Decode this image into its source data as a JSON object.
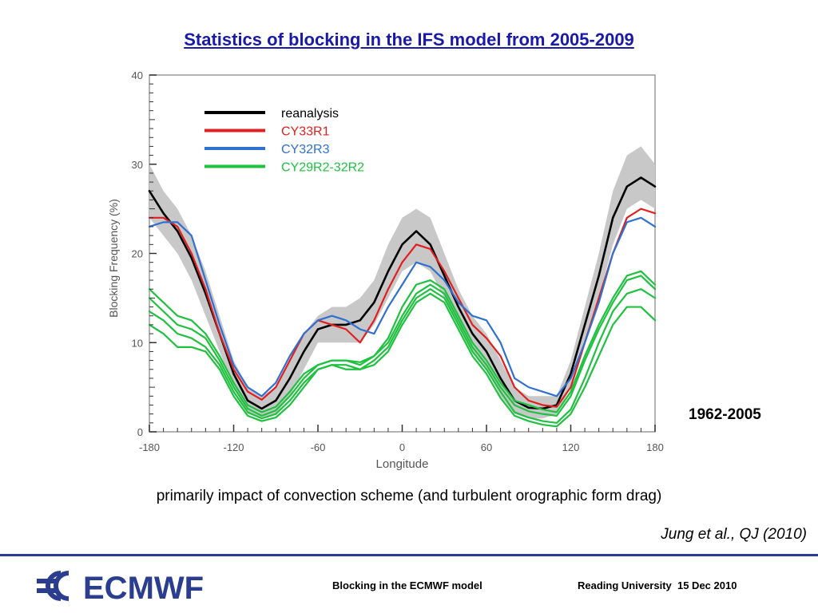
{
  "slide": {
    "title": "Statistics of blocking in the IFS model from 2005-2009",
    "period_label": "1962-2005",
    "caption": "primarily impact of convection scheme (and turbulent orographic form drag)",
    "citation": "Jung et al., QJ (2010)"
  },
  "footer": {
    "logo_text": "ECMWF",
    "left_text": "Blocking in the ECMWF model",
    "right_text": "Reading University  15 Dec 2010"
  },
  "colors": {
    "title": "#1a1aa8",
    "divider": "#2b3d8f",
    "logo": "#2b3d8f",
    "band": "#c8c8c8"
  },
  "chart_data": {
    "type": "line",
    "title": "",
    "xlabel": "Longitude",
    "ylabel": "Blocking Frequency (%)",
    "xlim": [
      -180,
      180
    ],
    "ylim": [
      0,
      40
    ],
    "xticks": [
      -180,
      -120,
      -60,
      0,
      60,
      120,
      180
    ],
    "yticks": [
      0,
      10,
      20,
      30,
      40
    ],
    "legend_position": "top-left",
    "x": [
      -180,
      -170,
      -160,
      -150,
      -140,
      -130,
      -120,
      -110,
      -100,
      -90,
      -80,
      -70,
      -60,
      -50,
      -40,
      -30,
      -20,
      -10,
      0,
      10,
      20,
      30,
      40,
      50,
      60,
      70,
      80,
      90,
      100,
      110,
      120,
      130,
      140,
      150,
      160,
      170,
      180
    ],
    "band": {
      "upper": [
        30,
        27,
        25,
        22,
        18,
        13,
        8,
        5,
        4,
        5,
        8,
        11,
        13,
        14,
        14,
        15,
        17,
        21,
        24,
        25,
        24,
        20,
        16,
        13,
        11,
        8,
        5,
        4,
        4,
        4,
        8,
        14,
        20,
        27,
        31,
        32,
        30
      ],
      "lower": [
        24,
        22,
        20,
        17,
        13,
        9,
        5,
        2,
        1.5,
        2,
        4,
        7,
        10,
        10,
        10,
        10,
        12,
        15,
        18,
        19,
        18,
        15,
        12,
        9,
        7,
        4,
        2,
        1.5,
        1.5,
        2,
        5,
        10,
        15,
        21,
        25,
        26,
        25
      ]
    },
    "series": [
      {
        "name": "reanalysis",
        "color": "#000000",
        "values": [
          27,
          24.5,
          22.5,
          19.5,
          15.5,
          11,
          6.5,
          3.5,
          2.6,
          3.5,
          6,
          9,
          11.5,
          12,
          12,
          12.5,
          14.5,
          18,
          21,
          22.5,
          21,
          17.5,
          14,
          11,
          9,
          6,
          3.5,
          2.7,
          2.6,
          3,
          6.5,
          12,
          17.5,
          24,
          27.5,
          28.5,
          27.5
        ]
      },
      {
        "name": "CY33R1",
        "color": "#e02020",
        "values": [
          24,
          24,
          23,
          20,
          16,
          11,
          7,
          4.5,
          3.6,
          5,
          8,
          11,
          12.5,
          12,
          11.5,
          10,
          12.5,
          16,
          19,
          21,
          20.5,
          18,
          15,
          12,
          10.5,
          8.5,
          5,
          3.5,
          3,
          2.8,
          5,
          10,
          15,
          20,
          24,
          25,
          24.5
        ]
      },
      {
        "name": "CY32R3",
        "color": "#3070d0",
        "values": [
          23,
          23.5,
          23.5,
          22,
          17,
          12,
          7.5,
          5,
          4,
          5.5,
          8.5,
          11,
          12.5,
          13,
          12.5,
          11.5,
          11,
          14,
          16.5,
          19,
          18.5,
          17,
          14.5,
          13,
          12.5,
          10,
          6,
          5,
          4.5,
          4,
          6,
          10,
          14.5,
          20,
          23.5,
          24,
          23
        ]
      },
      {
        "name": "CY29R2-32R2",
        "color": "#20c040",
        "values": [
          16,
          14.5,
          13,
          12.5,
          11,
          8.5,
          5.5,
          3,
          2.2,
          2.8,
          4.5,
          6.5,
          7.5,
          8,
          8,
          7.5,
          8.5,
          10.5,
          14,
          16.5,
          17,
          16,
          13,
          10,
          8,
          5.5,
          3.5,
          3,
          2.5,
          2.2,
          4.5,
          8.5,
          12,
          15,
          17.5,
          18,
          16.5
        ]
      },
      {
        "name": "",
        "color": "#20c040",
        "values": [
          15,
          13.5,
          12,
          11.5,
          10.5,
          8,
          5,
          2.6,
          1.8,
          2.4,
          4,
          6,
          7.5,
          8,
          8,
          7.8,
          8.5,
          10,
          13,
          15.5,
          16.5,
          15.5,
          12.5,
          9.5,
          7.5,
          5,
          3,
          2.3,
          2,
          1.8,
          4,
          8,
          11.5,
          14.5,
          17,
          17.5,
          16
        ]
      },
      {
        "name": "",
        "color": "#20c040",
        "values": [
          13.5,
          12.5,
          11,
          10.5,
          9.5,
          7.5,
          4.5,
          2.2,
          1.5,
          2,
          3.5,
          5.5,
          7,
          7.5,
          7.5,
          7,
          8,
          9.5,
          12.5,
          15,
          16,
          15,
          12,
          9,
          7,
          4.5,
          2.2,
          1.6,
          1.2,
          1,
          2.5,
          6,
          10,
          13.5,
          15.5,
          16,
          15
        ]
      },
      {
        "name": "",
        "color": "#20c040",
        "values": [
          12,
          11,
          9.5,
          9.5,
          9,
          7,
          4,
          1.8,
          1.2,
          1.6,
          3,
          5,
          7,
          7.5,
          7,
          7,
          7.5,
          9,
          12,
          14.5,
          15.5,
          14.5,
          11.5,
          8.5,
          6.5,
          3.8,
          1.8,
          1.2,
          0.8,
          0.6,
          2,
          5,
          8.5,
          12,
          14,
          14,
          12.5
        ]
      }
    ]
  }
}
